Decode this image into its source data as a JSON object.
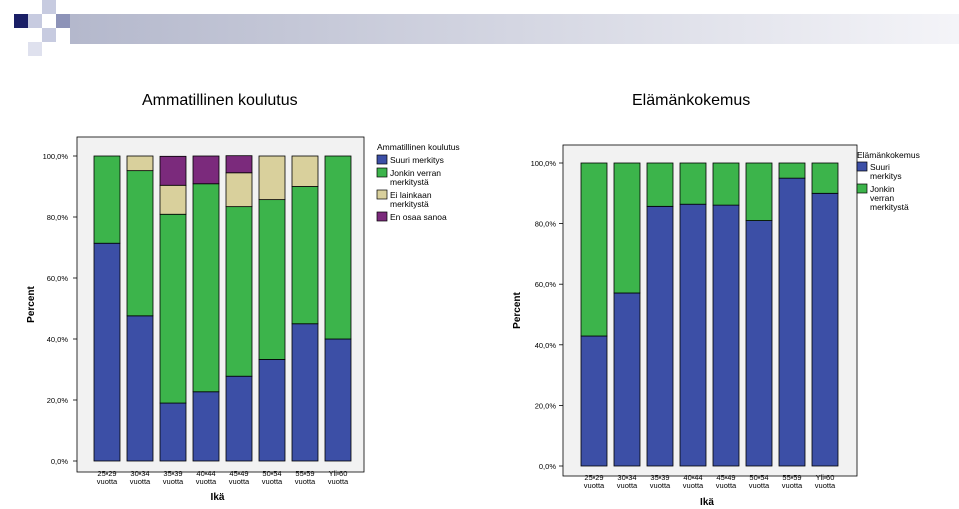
{
  "slide": {
    "left_title": "Ammatillinen koulutus",
    "right_title": "Elämänkokemus"
  },
  "colors": {
    "suuri": "#3c4fa6",
    "jonkin": "#3cb44b",
    "ei": "#d9d09c",
    "en": "#7b2a7c",
    "plot_bg": "#f2f2f2",
    "header_bar": "#b4b8cc"
  },
  "chart_data": [
    {
      "type": "bar",
      "stacked": true,
      "categories": [
        "25-29\nvuotta",
        "30-34\nvuotta",
        "35-39\nvuotta",
        "40-44\nvuotta",
        "45-49\nvuotta",
        "50-54\nvuotta",
        "55-59\nvuotta",
        "Yli 60\nvuotta"
      ],
      "series": [
        {
          "name": "Suuri merkitys",
          "color_key": "suuri",
          "values": [
            71.4,
            47.6,
            19.0,
            22.7,
            27.8,
            33.3,
            45.0,
            40.0
          ]
        },
        {
          "name": "Jonkin verran merkitystä",
          "color_key": "jonkin",
          "values": [
            28.6,
            47.6,
            61.9,
            68.2,
            55.6,
            52.4,
            45.0,
            60.0
          ]
        },
        {
          "name": "Ei lainkaan merkitystä",
          "color_key": "ei",
          "values": [
            0,
            4.8,
            9.5,
            0,
            11.1,
            14.3,
            10.0,
            0
          ]
        },
        {
          "name": "En osaa sanoa",
          "color_key": "en",
          "values": [
            0,
            0,
            9.5,
            9.1,
            5.6,
            0,
            0,
            0
          ]
        }
      ],
      "legend_title": "Ammatillinen koulutus",
      "legend_position": "right",
      "xlabel": "Ikä",
      "ylabel": "Percent",
      "ylim": [
        0,
        100
      ],
      "yticks": [
        "0,0%",
        "20,0%",
        "40,0%",
        "60,0%",
        "80,0%",
        "100,0%"
      ]
    },
    {
      "type": "bar",
      "stacked": true,
      "categories": [
        "25-29\nvuotta",
        "30-34\nvuotta",
        "35-39\nvuotta",
        "40-44\nvuotta",
        "45-49\nvuotta",
        "50-54\nvuotta",
        "55-59\nvuotta",
        "Yli 60\nvuotta"
      ],
      "series": [
        {
          "name": "Suuri merkitys",
          "color_key": "suuri",
          "values": [
            42.9,
            57.1,
            85.7,
            86.4,
            86.1,
            81.0,
            95.0,
            90.0
          ]
        },
        {
          "name": "Jonkin verran merkitystä",
          "color_key": "jonkin",
          "values": [
            57.1,
            42.9,
            14.3,
            13.6,
            13.9,
            19.0,
            5.0,
            10.0
          ]
        }
      ],
      "legend_title": "Elämänkokemus",
      "legend_position": "right",
      "xlabel": "Ikä",
      "ylabel": "Percent",
      "ylim": [
        0,
        100
      ],
      "yticks": [
        "0,0%",
        "20,0%",
        "40,0%",
        "60,0%",
        "80,0%",
        "100,0%"
      ]
    }
  ]
}
